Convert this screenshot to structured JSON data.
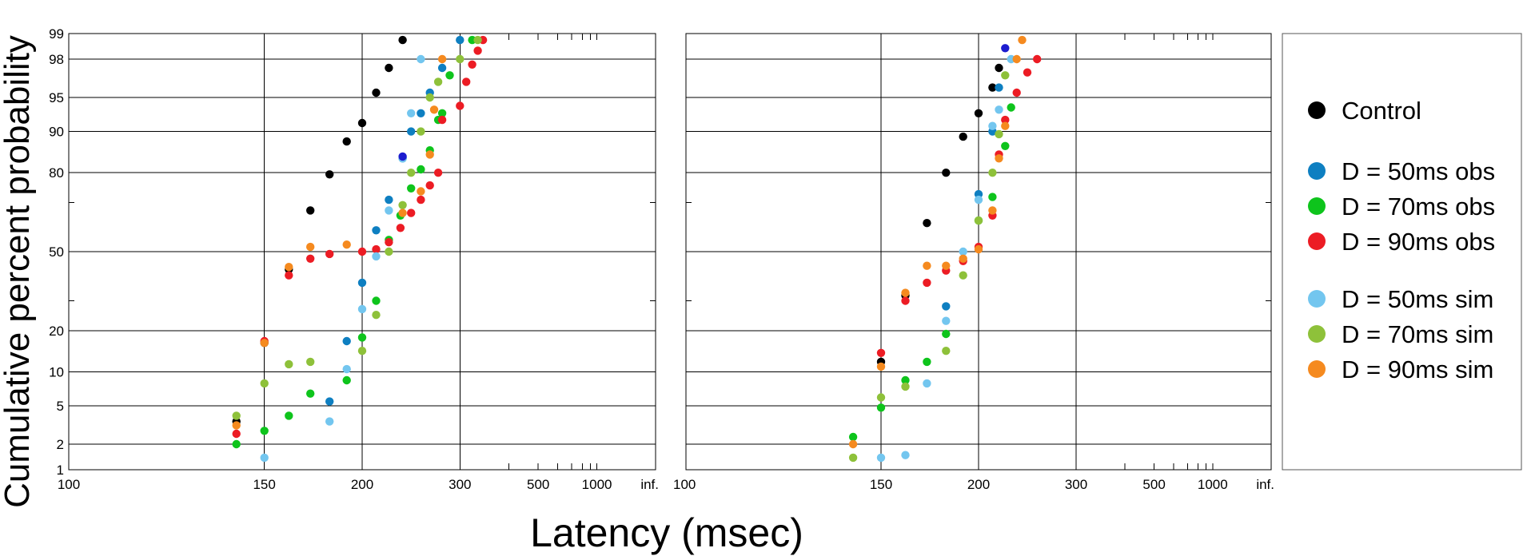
{
  "figure": {
    "ylabel": "Cumulative percent probability",
    "xlabel": "Latency (msec)",
    "yticks": [
      1,
      2,
      5,
      10,
      20,
      50,
      80,
      90,
      95,
      98,
      99
    ],
    "xticks": [
      "100",
      "150",
      "200",
      "300",
      "500",
      "1000",
      "inf."
    ],
    "colors": {
      "Control": "#000000",
      "D = 50ms obs": "#0e7fc1",
      "D = 70ms obs": "#0ec41c",
      "D = 90ms obs": "#ec1c24",
      "D = 50ms sim": "#73c6ef",
      "D = 70ms sim": "#8ec13a",
      "D = 90ms sim": "#f58a1f",
      "highlight": "#1c1ccf"
    }
  },
  "legend": {
    "entries": [
      {
        "label": "Control",
        "color": "#000000"
      },
      {
        "label": "D = 50ms obs",
        "color": "#0e7fc1"
      },
      {
        "label": "D = 70ms obs",
        "color": "#0ec41c"
      },
      {
        "label": "D = 90ms obs",
        "color": "#ec1c24"
      },
      {
        "label": "D = 50ms sim",
        "color": "#73c6ef"
      },
      {
        "label": "D = 70ms sim",
        "color": "#8ec13a"
      },
      {
        "label": "D = 90ms sim",
        "color": "#f58a1f"
      }
    ]
  },
  "chart_data": [
    {
      "type": "scatter",
      "panel": "left",
      "x_scale": "reciprocal",
      "y_scale": "probit",
      "xlabel": "Latency (msec)",
      "ylabel": "Cumulative percent probability",
      "xlim": [
        100,
        "inf."
      ],
      "ylim": [
        1,
        99
      ],
      "grid": true,
      "series": [
        {
          "name": "Control",
          "points": [
            [
              140,
              3.5
            ],
            [
              150,
              16.5
            ],
            [
              160,
              42.5
            ],
            [
              170,
              67
            ],
            [
              180,
              79.5
            ],
            [
              190,
              88
            ],
            [
              200,
              91.5
            ],
            [
              210,
              95.5
            ],
            [
              220,
              97.5
            ],
            [
              232,
              98.8
            ]
          ]
        },
        {
          "name": "D = 50ms obs",
          "points": [
            [
              180,
              5.5
            ],
            [
              190,
              17
            ],
            [
              200,
              37
            ],
            [
              210,
              59
            ],
            [
              220,
              71
            ],
            [
              232,
              84
            ],
            [
              240,
              90
            ],
            [
              250,
              93
            ],
            [
              260,
              95.5
            ],
            [
              275,
              97.5
            ],
            [
              300,
              98.8
            ]
          ]
        },
        {
          "name": "D = 70ms obs",
          "points": [
            [
              140,
              2
            ],
            [
              150,
              2.8
            ],
            [
              160,
              4
            ],
            [
              170,
              6.5
            ],
            [
              190,
              8.5
            ],
            [
              200,
              18
            ],
            [
              210,
              30
            ],
            [
              220,
              55
            ],
            [
              230,
              65
            ],
            [
              240,
              75
            ],
            [
              250,
              81
            ],
            [
              260,
              86
            ],
            [
              270,
              92
            ],
            [
              275,
              93
            ],
            [
              285,
              97
            ],
            [
              320,
              98.8
            ]
          ]
        },
        {
          "name": "D = 90ms obs",
          "points": [
            [
              140,
              2.6
            ],
            [
              150,
              17
            ],
            [
              160,
              40
            ],
            [
              170,
              47
            ],
            [
              180,
              49
            ],
            [
              200,
              50
            ],
            [
              210,
              51
            ],
            [
              220,
              54
            ],
            [
              230,
              60
            ],
            [
              240,
              66
            ],
            [
              250,
              71
            ],
            [
              260,
              76
            ],
            [
              270,
              80
            ],
            [
              275,
              92
            ],
            [
              300,
              94
            ],
            [
              310,
              96.5
            ],
            [
              320,
              97.7
            ],
            [
              330,
              98.4
            ],
            [
              340,
              98.8
            ]
          ]
        },
        {
          "name": "D = 50ms sim",
          "points": [
            [
              150,
              1.4
            ],
            [
              180,
              3.5
            ],
            [
              190,
              10.5
            ],
            [
              200,
              27
            ],
            [
              210,
              48
            ],
            [
              220,
              67
            ],
            [
              232,
              84
            ],
            [
              240,
              93
            ],
            [
              250,
              98
            ]
          ]
        },
        {
          "name": "D = 70ms sim",
          "points": [
            [
              140,
              4
            ],
            [
              150,
              8
            ],
            [
              160,
              11.5
            ],
            [
              170,
              12
            ],
            [
              200,
              14.5
            ],
            [
              210,
              25
            ],
            [
              220,
              50
            ],
            [
              232,
              69
            ],
            [
              240,
              80
            ],
            [
              250,
              90
            ],
            [
              260,
              95
            ],
            [
              270,
              96.5
            ],
            [
              300,
              98
            ],
            [
              330,
              98.8
            ]
          ]
        },
        {
          "name": "D = 90ms sim",
          "points": [
            [
              140,
              3.2
            ],
            [
              150,
              16.5
            ],
            [
              160,
              43.5
            ],
            [
              170,
              52
            ],
            [
              190,
              53
            ],
            [
              232,
              66
            ],
            [
              250,
              74
            ],
            [
              260,
              85
            ],
            [
              265,
              93.5
            ],
            [
              275,
              98
            ]
          ]
        }
      ],
      "highlight_points": [
        [
          232,
          84.5
        ]
      ]
    },
    {
      "type": "scatter",
      "panel": "right",
      "x_scale": "reciprocal",
      "y_scale": "probit",
      "xlabel": "Latency (msec)",
      "xlim": [
        100,
        "inf."
      ],
      "ylim": [
        1,
        99
      ],
      "grid": true,
      "series": [
        {
          "name": "Control",
          "points": [
            [
              150,
              12
            ],
            [
              160,
              32
            ],
            [
              170,
              62
            ],
            [
              180,
              80
            ],
            [
              190,
              89
            ],
            [
              200,
              93
            ],
            [
              210,
              96
            ],
            [
              215,
              97.5
            ]
          ]
        },
        {
          "name": "D = 50ms obs",
          "points": [
            [
              180,
              28
            ],
            [
              200,
              73
            ],
            [
              210,
              90
            ],
            [
              215,
              96
            ]
          ]
        },
        {
          "name": "D = 70ms obs",
          "points": [
            [
              140,
              2.4
            ],
            [
              150,
              4.8
            ],
            [
              160,
              8.5
            ],
            [
              170,
              12
            ],
            [
              180,
              19
            ],
            [
              200,
              63
            ],
            [
              210,
              72
            ],
            [
              220,
              87
            ],
            [
              225,
              93.8
            ]
          ]
        },
        {
          "name": "D = 90ms obs",
          "points": [
            [
              150,
              14
            ],
            [
              160,
              30
            ],
            [
              170,
              37
            ],
            [
              180,
              42
            ],
            [
              190,
              46
            ],
            [
              200,
              52
            ],
            [
              210,
              65
            ],
            [
              215,
              85
            ],
            [
              220,
              92
            ],
            [
              230,
              95.5
            ],
            [
              240,
              97.2
            ],
            [
              250,
              98
            ]
          ]
        },
        {
          "name": "D = 50ms sim",
          "points": [
            [
              150,
              1.4
            ],
            [
              160,
              1.5
            ],
            [
              170,
              8
            ],
            [
              180,
              23
            ],
            [
              190,
              50
            ],
            [
              200,
              71
            ],
            [
              210,
              91
            ],
            [
              215,
              93.5
            ],
            [
              225,
              98
            ]
          ]
        },
        {
          "name": "D = 70ms sim",
          "points": [
            [
              140,
              1.4
            ],
            [
              150,
              6
            ],
            [
              160,
              7.5
            ],
            [
              180,
              14.5
            ],
            [
              190,
              40
            ],
            [
              200,
              63
            ],
            [
              210,
              80
            ],
            [
              215,
              89.5
            ],
            [
              220,
              97
            ]
          ]
        },
        {
          "name": "D = 90ms sim",
          "points": [
            [
              140,
              2
            ],
            [
              150,
              11
            ],
            [
              160,
              33
            ],
            [
              170,
              44
            ],
            [
              180,
              44
            ],
            [
              190,
              47
            ],
            [
              200,
              51
            ],
            [
              210,
              67
            ],
            [
              215,
              84
            ],
            [
              220,
              91
            ],
            [
              230,
              98
            ],
            [
              235,
              98.8
            ]
          ]
        }
      ],
      "highlight_points": [
        [
          220,
          98.5
        ]
      ]
    }
  ]
}
